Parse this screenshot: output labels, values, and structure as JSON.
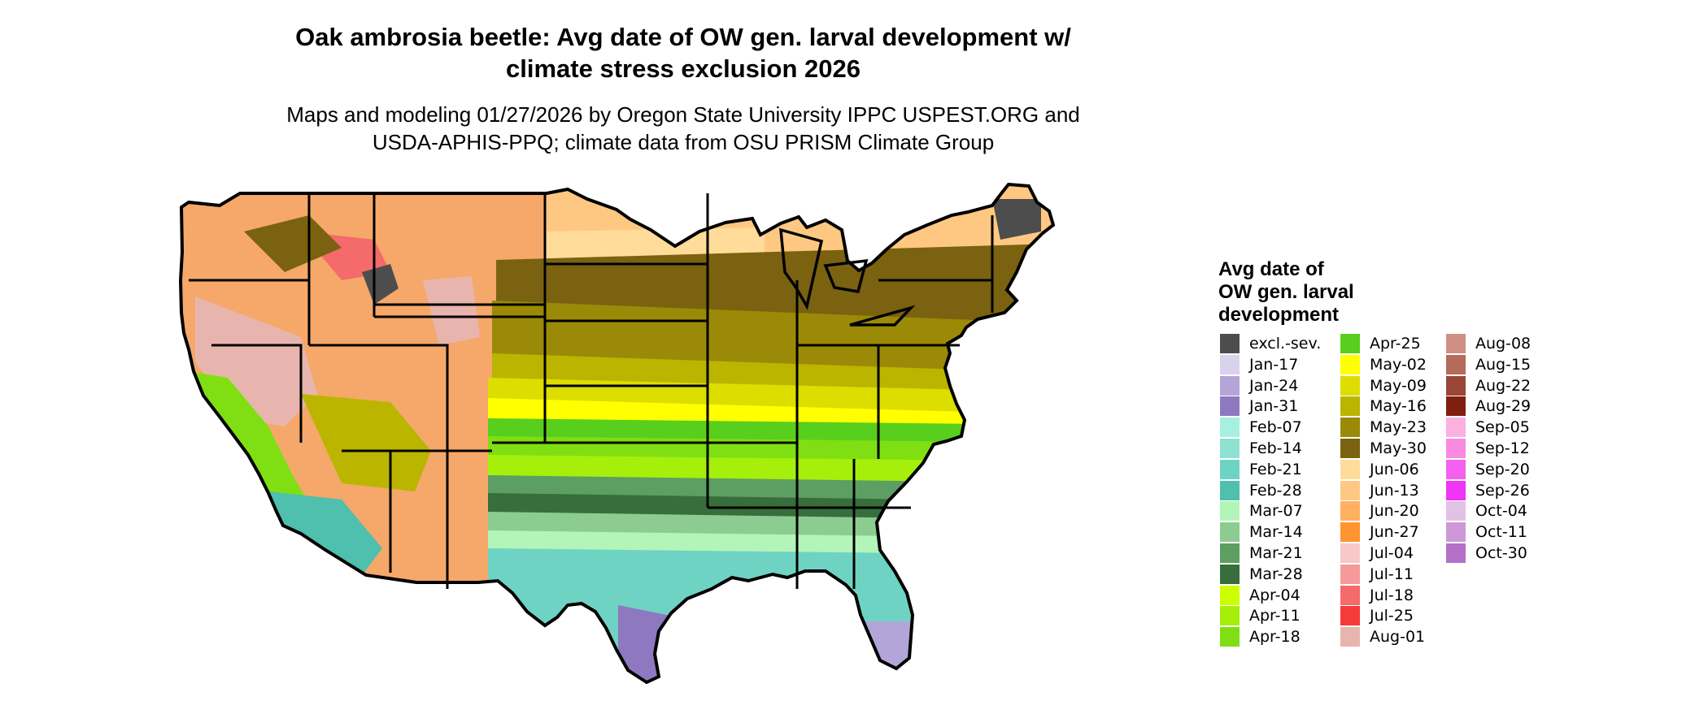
{
  "title": {
    "line1": "Oak ambrosia beetle: Avg date of OW gen. larval development w/",
    "line2": "climate stress exclusion 2026"
  },
  "subtitle": {
    "line1": "Maps and modeling 01/27/2026 by Oregon State University IPPC USPEST.ORG and",
    "line2": "USDA-APHIS-PPQ; climate data from OSU PRISM Climate Group"
  },
  "legend": {
    "title_lines": [
      "Avg date of",
      "OW gen. larval",
      "development"
    ],
    "columns": [
      [
        {
          "label": "excl.-sev.",
          "color": "#4d4d4d"
        },
        {
          "label": "Jan-17",
          "color": "#d9d2ec"
        },
        {
          "label": "Jan-24",
          "color": "#b3a5d8"
        },
        {
          "label": "Jan-31",
          "color": "#8e78c0"
        },
        {
          "label": "Feb-07",
          "color": "#a6f0e0"
        },
        {
          "label": "Feb-14",
          "color": "#8de2d1"
        },
        {
          "label": "Feb-21",
          "color": "#6fd3c3"
        },
        {
          "label": "Feb-28",
          "color": "#4fbfae"
        },
        {
          "label": "Mar-07",
          "color": "#b3f5b8"
        },
        {
          "label": "Mar-14",
          "color": "#8ccc90"
        },
        {
          "label": "Mar-21",
          "color": "#5d9e63"
        },
        {
          "label": "Mar-28",
          "color": "#376e3b"
        },
        {
          "label": "Apr-04",
          "color": "#ccff00"
        },
        {
          "label": "Apr-11",
          "color": "#a6ef0a"
        },
        {
          "label": "Apr-18",
          "color": "#7fdf13"
        }
      ],
      [
        {
          "label": "Apr-25",
          "color": "#58cf1c"
        },
        {
          "label": "May-02",
          "color": "#ffff00"
        },
        {
          "label": "May-09",
          "color": "#dddd00"
        },
        {
          "label": "May-16",
          "color": "#bbb500"
        },
        {
          "label": "May-23",
          "color": "#9a8a07"
        },
        {
          "label": "May-30",
          "color": "#7a6210"
        },
        {
          "label": "Jun-06",
          "color": "#ffdc9a"
        },
        {
          "label": "Jun-13",
          "color": "#ffc882"
        },
        {
          "label": "Jun-20",
          "color": "#ffb060"
        },
        {
          "label": "Jun-27",
          "color": "#ff9530"
        },
        {
          "label": "Jul-04",
          "color": "#f8c8c8"
        },
        {
          "label": "Jul-11",
          "color": "#f59a9a"
        },
        {
          "label": "Jul-18",
          "color": "#f56a6a"
        },
        {
          "label": "Jul-25",
          "color": "#f53a3a"
        },
        {
          "label": "Aug-01",
          "color": "#e8b5ae"
        }
      ],
      [
        {
          "label": "Aug-08",
          "color": "#d08f85"
        },
        {
          "label": "Aug-15",
          "color": "#b56a5c"
        },
        {
          "label": "Aug-22",
          "color": "#9a4535"
        },
        {
          "label": "Aug-29",
          "color": "#7f200f"
        },
        {
          "label": "Sep-05",
          "color": "#fbb0e0"
        },
        {
          "label": "Sep-12",
          "color": "#f88ae0"
        },
        {
          "label": "Sep-20",
          "color": "#f560ee"
        },
        {
          "label": "Sep-26",
          "color": "#f035f5"
        },
        {
          "label": "Oct-04",
          "color": "#e2c2e4"
        },
        {
          "label": "Oct-11",
          "color": "#cc99d6"
        },
        {
          "label": "Oct-30",
          "color": "#b570c8"
        }
      ]
    ]
  }
}
